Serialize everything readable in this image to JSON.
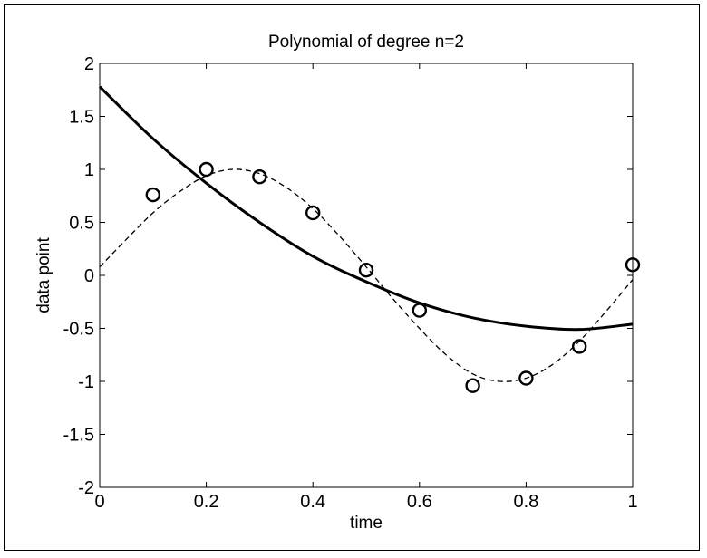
{
  "chart_data": {
    "type": "line",
    "title": "Polynomial of degree n=2",
    "xlabel": "time",
    "ylabel": "data point",
    "xlim": [
      0,
      1
    ],
    "ylim": [
      -2,
      2
    ],
    "x_ticks": [
      0,
      0.2,
      0.4,
      0.6,
      0.8,
      1
    ],
    "x_tick_labels": [
      "0",
      "0.2",
      "0.4",
      "0.6",
      "0.8",
      "1"
    ],
    "y_ticks": [
      -2,
      -1.5,
      -1,
      -0.5,
      0,
      0.5,
      1,
      1.5,
      2
    ],
    "y_tick_labels": [
      "-2",
      "-1.5",
      "-1",
      "-0.5",
      "0",
      "0.5",
      "1",
      "1.5",
      "2"
    ],
    "grid": false,
    "legend": "none",
    "series": [
      {
        "style": "markers-circle",
        "color": "#000000",
        "x": [
          0.1,
          0.2,
          0.3,
          0.4,
          0.5,
          0.6,
          0.7,
          0.8,
          0.9,
          1.0
        ],
        "y": [
          0.76,
          1.0,
          0.93,
          0.59,
          0.05,
          -0.33,
          -1.04,
          -0.97,
          -0.67,
          0.1
        ]
      },
      {
        "style": "solid-thick",
        "color": "#000000",
        "x": [
          0.0,
          0.1,
          0.2,
          0.3,
          0.4,
          0.5,
          0.6,
          0.7,
          0.8,
          0.9,
          1.0
        ],
        "y": [
          1.78,
          1.29,
          0.87,
          0.5,
          0.18,
          -0.06,
          -0.26,
          -0.4,
          -0.48,
          -0.51,
          -0.46
        ]
      },
      {
        "style": "dashed",
        "color": "#000000",
        "x": [
          0.0,
          0.05,
          0.1,
          0.15,
          0.2,
          0.25,
          0.3,
          0.35,
          0.4,
          0.45,
          0.5,
          0.55,
          0.6,
          0.65,
          0.7,
          0.75,
          0.8,
          0.85,
          0.9,
          0.95,
          1.0
        ],
        "y": [
          0.08,
          0.34,
          0.59,
          0.79,
          0.94,
          1.0,
          0.96,
          0.83,
          0.63,
          0.37,
          0.08,
          -0.22,
          -0.5,
          -0.75,
          -0.93,
          -1.0,
          -0.97,
          -0.84,
          -0.62,
          -0.34,
          -0.04
        ]
      }
    ]
  }
}
